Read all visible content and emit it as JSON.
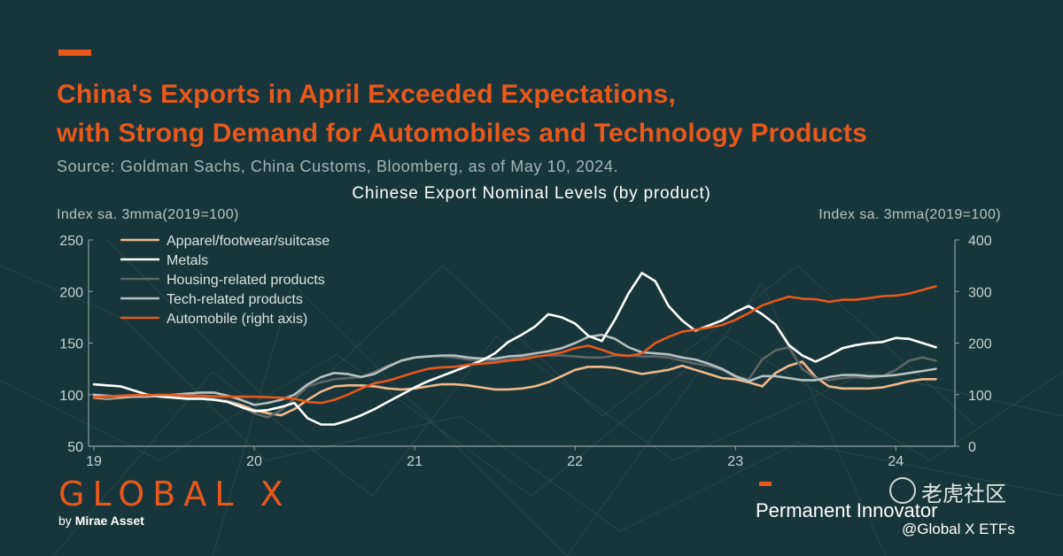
{
  "header": {
    "title_line1": "China's Exports in April Exceeded Expectations,",
    "title_line2": "with Strong Demand for Automobiles and Technology Products",
    "source": "Source: Goldman Sachs, China Customs, Bloomberg, as of May 10, 2024."
  },
  "colors": {
    "background": "#17353b",
    "accent": "#e8581b",
    "apparel": "#f2b98a",
    "metals": "#ffffff",
    "housing": "#5d6668",
    "tech": "#b7c1c3",
    "automobile": "#e8581b"
  },
  "chart_data": {
    "type": "line",
    "title": "Chinese Export Nominal Levels (by product)",
    "ylabel_left": "Index sa. 3mma(2019=100)",
    "ylabel_right": "Index sa. 3mma(2019=100)",
    "ylim_left": [
      50,
      250
    ],
    "ylim_right": [
      0,
      400
    ],
    "yticks_left": [
      "250",
      "200",
      "150",
      "100",
      "50"
    ],
    "yticks_right": [
      "400",
      "300",
      "200",
      "100",
      "0"
    ],
    "x_tick_labels": [
      "19",
      "20",
      "21",
      "22",
      "23",
      "24"
    ],
    "x_tick_positions": [
      2019,
      2020,
      2021,
      2022,
      2023,
      2024
    ],
    "xlim": [
      2019,
      2024.33
    ],
    "legend_position": "top-left",
    "grid": false,
    "x": [
      2019.0,
      2019.083,
      2019.167,
      2019.25,
      2019.333,
      2019.417,
      2019.5,
      2019.583,
      2019.667,
      2019.75,
      2019.833,
      2019.917,
      2020.0,
      2020.083,
      2020.167,
      2020.25,
      2020.333,
      2020.417,
      2020.5,
      2020.583,
      2020.667,
      2020.75,
      2020.833,
      2020.917,
      2021.0,
      2021.083,
      2021.167,
      2021.25,
      2021.333,
      2021.417,
      2021.5,
      2021.583,
      2021.667,
      2021.75,
      2021.833,
      2021.917,
      2022.0,
      2022.083,
      2022.167,
      2022.25,
      2022.333,
      2022.417,
      2022.5,
      2022.583,
      2022.667,
      2022.75,
      2022.833,
      2022.917,
      2023.0,
      2023.083,
      2023.167,
      2023.25,
      2023.333,
      2023.417,
      2023.5,
      2023.583,
      2023.667,
      2023.75,
      2023.833,
      2023.917,
      2024.0,
      2024.083,
      2024.167,
      2024.25
    ],
    "series": [
      {
        "name": "Apparel/footwear/suitcase",
        "axis": "left",
        "values": [
          97,
          96,
          97,
          98,
          99,
          99,
          98,
          98,
          97,
          96,
          94,
          90,
          85,
          82,
          80,
          86,
          95,
          103,
          108,
          109,
          109,
          108,
          106,
          105,
          106,
          108,
          110,
          110,
          109,
          107,
          105,
          105,
          106,
          108,
          112,
          118,
          124,
          127,
          127,
          126,
          123,
          120,
          122,
          124,
          128,
          124,
          120,
          116,
          115,
          112,
          108,
          121,
          128,
          132,
          117,
          108,
          106,
          106,
          106,
          107,
          110,
          113,
          115,
          115
        ]
      },
      {
        "name": "Metals",
        "axis": "left",
        "values": [
          110,
          109,
          108,
          104,
          100,
          98,
          97,
          96,
          96,
          95,
          93,
          88,
          84,
          85,
          88,
          92,
          77,
          71,
          71,
          75,
          80,
          86,
          93,
          100,
          107,
          113,
          118,
          123,
          128,
          133,
          140,
          151,
          158,
          166,
          178,
          175,
          169,
          157,
          152,
          173,
          198,
          218,
          210,
          186,
          172,
          162,
          167,
          172,
          180,
          186,
          178,
          168,
          148,
          138,
          132,
          138,
          145,
          148,
          150,
          151,
          155,
          154,
          150,
          146
        ]
      },
      {
        "name": "Housing-related products",
        "axis": "left",
        "values": [
          98,
          97,
          98,
          98,
          99,
          99,
          98,
          98,
          97,
          96,
          94,
          88,
          82,
          78,
          85,
          96,
          108,
          112,
          115,
          116,
          117,
          122,
          128,
          133,
          136,
          137,
          137,
          136,
          134,
          133,
          133,
          134,
          136,
          137,
          138,
          138,
          137,
          136,
          136,
          138,
          138,
          137,
          137,
          136,
          133,
          130,
          128,
          124,
          117,
          115,
          134,
          143,
          146,
          125,
          116,
          114,
          116,
          117,
          116,
          118,
          124,
          133,
          136,
          133
        ]
      },
      {
        "name": "Tech-related products",
        "axis": "left",
        "values": [
          100,
          99,
          98,
          98,
          98,
          99,
          100,
          101,
          102,
          102,
          99,
          95,
          90,
          92,
          95,
          100,
          110,
          117,
          121,
          120,
          117,
          120,
          127,
          133,
          136,
          137,
          138,
          138,
          136,
          135,
          135,
          137,
          138,
          140,
          142,
          145,
          150,
          156,
          158,
          154,
          146,
          141,
          140,
          139,
          136,
          134,
          130,
          125,
          118,
          113,
          118,
          118,
          116,
          114,
          114,
          117,
          119,
          119,
          118,
          118,
          119,
          121,
          123,
          125
        ]
      },
      {
        "name": "Automobile (right axis)",
        "axis": "right",
        "values": [
          95,
          97,
          98,
          99,
          99,
          100,
          99,
          98,
          98,
          97,
          96,
          96,
          96,
          95,
          94,
          92,
          86,
          84,
          90,
          100,
          112,
          122,
          127,
          135,
          143,
          150,
          153,
          154,
          158,
          160,
          162,
          166,
          168,
          173,
          177,
          182,
          190,
          195,
          187,
          178,
          175,
          180,
          200,
          212,
          222,
          226,
          230,
          235,
          245,
          258,
          273,
          282,
          290,
          286,
          285,
          280,
          284,
          284,
          287,
          291,
          292,
          296,
          303,
          310
        ]
      }
    ]
  },
  "branding": {
    "logo": "GLOBAL X",
    "logo_sub_prefix": "by",
    "logo_sub_name": "Mirae Asset",
    "tagline": "Permanent Innovator",
    "watermark_cn": "老虎社区",
    "watermark_handle": "@Global X ETFs"
  }
}
